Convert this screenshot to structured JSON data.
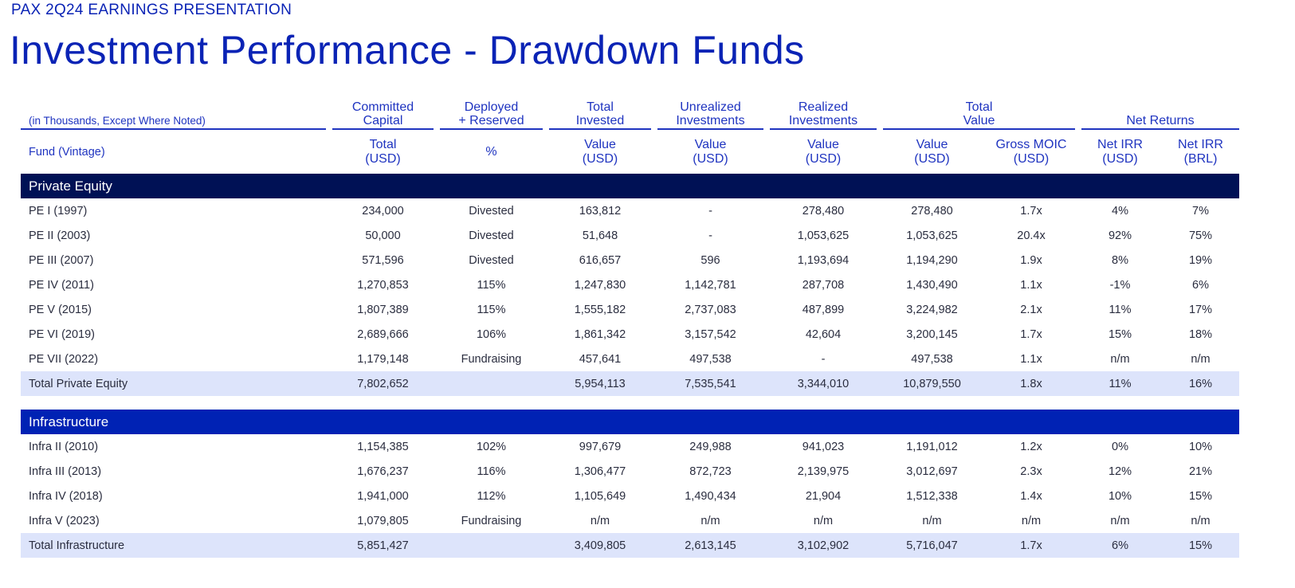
{
  "header": {
    "kicker": "PAX 2Q24 EARNINGS PRESENTATION",
    "title": "Investment Performance - Drawdown Funds"
  },
  "table": {
    "note": "(in Thousands, Except Where Noted)",
    "groups": [
      "Committed\nCapital",
      "Deployed\n+ Reserved",
      "Total\nInvested",
      "Unrealized\nInvestments",
      "Realized\nInvestments",
      "Total\nValue",
      "Net Returns"
    ],
    "subheaders": [
      "Fund (Vintage)",
      "Total\n(USD)",
      "%",
      "Value\n(USD)",
      "Value\n(USD)",
      "Value\n(USD)",
      "Value\n(USD)",
      "Gross MOIC\n(USD)",
      "Net IRR\n(USD)",
      "Net IRR\n(BRL)"
    ],
    "sections": [
      {
        "name": "Private Equity",
        "rows": [
          [
            "PE I (1997)",
            "234,000",
            "Divested",
            "163,812",
            "-",
            "278,480",
            "278,480",
            "1.7x",
            "4%",
            "7%"
          ],
          [
            "PE II (2003)",
            "50,000",
            "Divested",
            "51,648",
            "-",
            "1,053,625",
            "1,053,625",
            "20.4x",
            "92%",
            "75%"
          ],
          [
            "PE III (2007)",
            "571,596",
            "Divested",
            "616,657",
            "596",
            "1,193,694",
            "1,194,290",
            "1.9x",
            "8%",
            "19%"
          ],
          [
            "PE IV (2011)",
            "1,270,853",
            "115%",
            "1,247,830",
            "1,142,781",
            "287,708",
            "1,430,490",
            "1.1x",
            "-1%",
            "6%"
          ],
          [
            "PE V (2015)",
            "1,807,389",
            "115%",
            "1,555,182",
            "2,737,083",
            "487,899",
            "3,224,982",
            "2.1x",
            "11%",
            "17%"
          ],
          [
            "PE VI (2019)",
            "2,689,666",
            "106%",
            "1,861,342",
            "3,157,542",
            "42,604",
            "3,200,145",
            "1.7x",
            "15%",
            "18%"
          ],
          [
            "PE VII (2022)",
            "1,179,148",
            "Fundraising",
            "457,641",
            "497,538",
            "-",
            "497,538",
            "1.1x",
            "n/m",
            "n/m"
          ]
        ],
        "total": [
          "Total Private Equity",
          "7,802,652",
          "",
          "5,954,113",
          "7,535,541",
          "3,344,010",
          "10,879,550",
          "1.8x",
          "11%",
          "16%"
        ]
      },
      {
        "name": "Infrastructure",
        "rows": [
          [
            "Infra II (2010)",
            "1,154,385",
            "102%",
            "997,679",
            "249,988",
            "941,023",
            "1,191,012",
            "1.2x",
            "0%",
            "10%"
          ],
          [
            "Infra III (2013)",
            "1,676,237",
            "116%",
            "1,306,477",
            "872,723",
            "2,139,975",
            "3,012,697",
            "2.3x",
            "12%",
            "21%"
          ],
          [
            "Infra IV (2018)",
            "1,941,000",
            "112%",
            "1,105,649",
            "1,490,434",
            "21,904",
            "1,512,338",
            "1.4x",
            "10%",
            "15%"
          ],
          [
            "Infra V (2023)",
            "1,079,805",
            "Fundraising",
            "n/m",
            "n/m",
            "n/m",
            "n/m",
            "n/m",
            "n/m",
            "n/m"
          ]
        ],
        "total": [
          "Total Infrastructure",
          "5,851,427",
          "",
          "3,409,805",
          "2,613,145",
          "3,102,902",
          "5,716,047",
          "1.7x",
          "6%",
          "15%"
        ]
      }
    ]
  }
}
